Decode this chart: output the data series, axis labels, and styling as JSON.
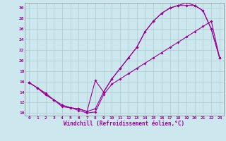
{
  "xlabel": "Windchill (Refroidissement éolien,°C)",
  "bg_color": "#cce8ee",
  "line_color": "#990099",
  "grid_color": "#aacccc",
  "xlim": [
    -0.5,
    23.5
  ],
  "ylim": [
    9.5,
    31.0
  ],
  "xticks": [
    0,
    1,
    2,
    3,
    4,
    5,
    6,
    7,
    8,
    9,
    10,
    11,
    12,
    13,
    14,
    15,
    16,
    17,
    18,
    19,
    20,
    21,
    22,
    23
  ],
  "yticks": [
    10,
    12,
    14,
    16,
    18,
    20,
    22,
    24,
    26,
    28,
    30
  ],
  "line1_x": [
    0,
    1,
    2,
    3,
    4,
    5,
    6,
    7,
    8,
    9,
    10,
    11,
    12,
    13,
    14,
    15,
    16,
    17,
    18,
    19,
    20,
    21,
    22,
    23
  ],
  "line1_y": [
    15.8,
    14.8,
    13.8,
    12.5,
    11.2,
    11.0,
    10.5,
    10.0,
    10.2,
    13.5,
    15.5,
    16.5,
    17.5,
    18.5,
    19.5,
    20.5,
    21.5,
    22.5,
    23.5,
    24.5,
    25.5,
    26.5,
    27.5,
    20.5
  ],
  "line2_x": [
    0,
    1,
    2,
    3,
    4,
    5,
    6,
    7,
    8,
    9,
    10,
    11,
    12,
    13,
    14,
    15,
    16,
    17,
    18,
    19,
    20,
    21,
    22,
    23
  ],
  "line2_y": [
    15.8,
    14.8,
    13.5,
    12.5,
    11.5,
    11.0,
    10.8,
    10.3,
    10.8,
    14.0,
    16.5,
    18.5,
    20.5,
    22.5,
    25.5,
    27.5,
    29.0,
    30.0,
    30.5,
    30.5,
    30.5,
    29.5,
    26.0,
    20.5
  ],
  "line3_x": [
    0,
    1,
    2,
    3,
    4,
    5,
    6,
    7,
    8,
    9,
    10,
    11,
    12,
    13,
    14,
    15,
    16,
    17,
    18,
    19,
    20,
    21,
    22,
    23
  ],
  "line3_y": [
    15.8,
    14.8,
    13.5,
    12.5,
    11.5,
    11.0,
    10.8,
    10.3,
    16.2,
    14.0,
    16.5,
    18.5,
    20.5,
    22.5,
    25.5,
    27.5,
    29.0,
    30.0,
    30.5,
    31.0,
    30.5,
    29.5,
    26.0,
    20.5
  ]
}
